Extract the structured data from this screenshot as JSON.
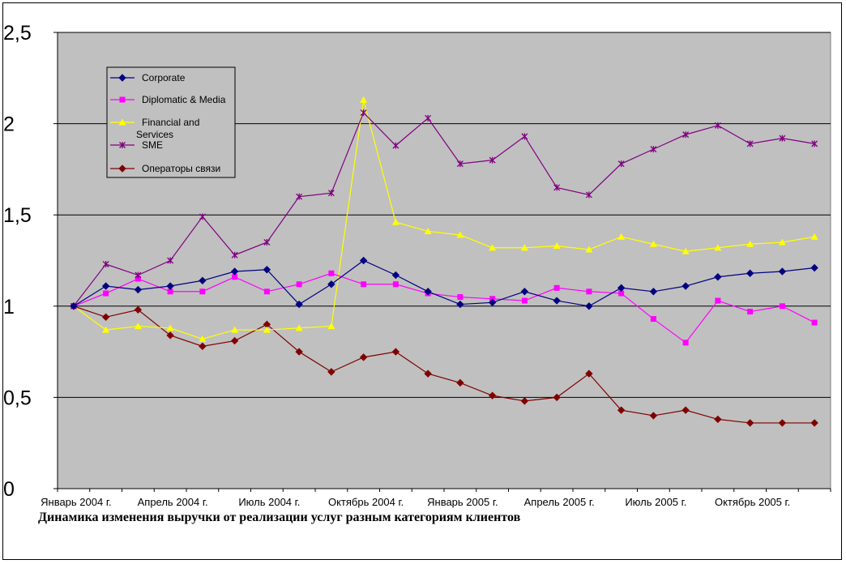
{
  "chart_data": {
    "type": "line",
    "title": "",
    "caption": "Динамика изменения выручки от реализации услуг разным категориям клиентов",
    "xlabel": "",
    "ylabel": "",
    "ylim": [
      0,
      2.5
    ],
    "y_ticks": [
      "0",
      "0,5",
      "1",
      "1,5",
      "2",
      "2,5"
    ],
    "y_tick_values": [
      0,
      0.5,
      1,
      1.5,
      2,
      2.5
    ],
    "x_tick_labels": [
      "Январь 2004 г.",
      "Апрель 2004 г.",
      "Июль 2004 г.",
      "Октябрь 2004 г.",
      "Январь 2005 г.",
      "Апрель 2005 г.",
      "Июль 2005 г.",
      "Октябрь 2005 г."
    ],
    "x_tick_label_indices": [
      0,
      3,
      6,
      9,
      12,
      15,
      18,
      21
    ],
    "n_points": 24,
    "grid": true,
    "legend_position": "top-left",
    "plot_background": "#c0c0c0",
    "series": [
      {
        "name": "Corporate",
        "color": "#000080",
        "marker": "diamond",
        "values": [
          1.0,
          1.11,
          1.09,
          1.11,
          1.14,
          1.19,
          1.2,
          1.01,
          1.12,
          1.25,
          1.17,
          1.08,
          1.01,
          1.02,
          1.08,
          1.03,
          1.0,
          1.1,
          1.08,
          1.11,
          1.16,
          1.18,
          1.19,
          1.21
        ]
      },
      {
        "name": "Diplomatic & Media",
        "color": "#ff00ff",
        "marker": "square",
        "values": [
          1.0,
          1.07,
          1.15,
          1.08,
          1.08,
          1.16,
          1.08,
          1.12,
          1.18,
          1.12,
          1.12,
          1.07,
          1.05,
          1.04,
          1.03,
          1.1,
          1.08,
          1.07,
          0.93,
          0.8,
          1.03,
          0.97,
          1.0,
          0.91
        ]
      },
      {
        "name": "Financial and Services",
        "color": "#ffff00",
        "marker": "triangle",
        "values": [
          1.0,
          0.87,
          0.89,
          0.88,
          0.82,
          0.87,
          0.87,
          0.88,
          0.89,
          2.13,
          1.46,
          1.41,
          1.39,
          1.32,
          1.32,
          1.33,
          1.31,
          1.38,
          1.34,
          1.3,
          1.32,
          1.34,
          1.35,
          1.38
        ]
      },
      {
        "name": "SME",
        "color": "#800080",
        "marker": "star",
        "values": [
          1.0,
          1.23,
          1.17,
          1.25,
          1.49,
          1.28,
          1.35,
          1.6,
          1.62,
          2.06,
          1.88,
          2.03,
          1.78,
          1.8,
          1.93,
          1.65,
          1.61,
          1.78,
          1.86,
          1.94,
          1.99,
          1.89,
          1.92,
          1.89
        ]
      },
      {
        "name": "Операторы связи",
        "color": "#800000",
        "marker": "diamond",
        "values": [
          1.0,
          0.94,
          0.98,
          0.84,
          0.78,
          0.81,
          0.9,
          0.75,
          0.64,
          0.72,
          0.75,
          0.63,
          0.58,
          0.51,
          0.48,
          0.5,
          0.63,
          0.43,
          0.4,
          0.43,
          0.38,
          0.36,
          0.36,
          0.36
        ]
      }
    ]
  }
}
